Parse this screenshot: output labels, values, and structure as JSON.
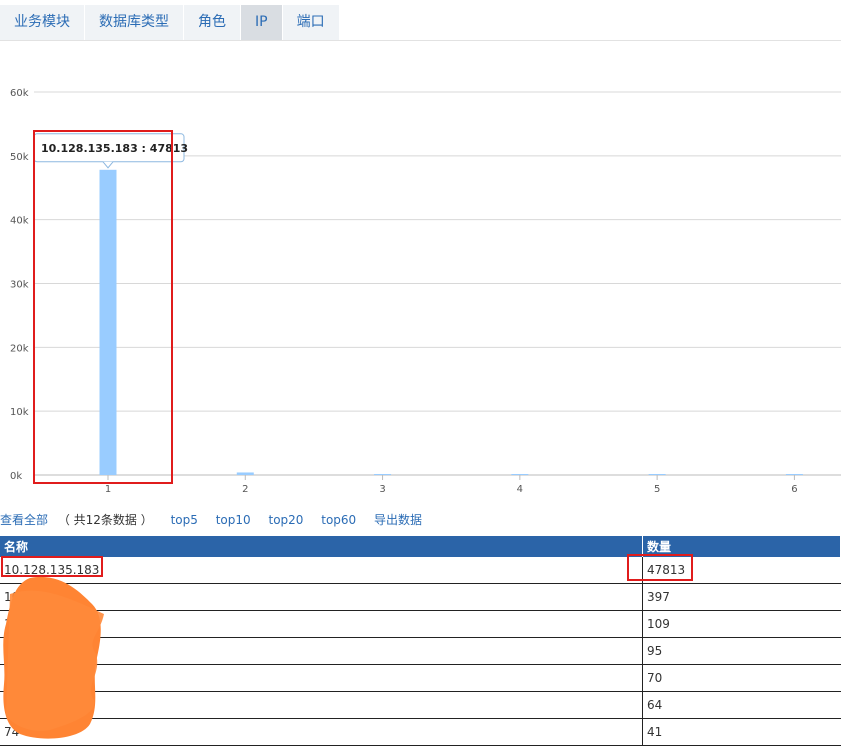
{
  "tabs": [
    {
      "label": "业务模块",
      "active": false
    },
    {
      "label": "数据库类型",
      "active": false
    },
    {
      "label": "角色",
      "active": false
    },
    {
      "label": "IP",
      "active": true
    },
    {
      "label": "端口",
      "active": false
    }
  ],
  "chart_data": {
    "type": "bar",
    "categories": [
      "1",
      "2",
      "3",
      "4",
      "5",
      "6"
    ],
    "values": [
      47813,
      397,
      109,
      95,
      70,
      64
    ],
    "ylim": [
      0,
      60000
    ],
    "yticks": [
      "0k",
      "10k",
      "20k",
      "30k",
      "40k",
      "50k",
      "60k"
    ],
    "bar_color": "#99ccff",
    "grid": true,
    "tooltip": {
      "name": "10.128.135.183",
      "value": "47813"
    }
  },
  "links": {
    "view_all": "查看全部",
    "count_text": "（ 共12条数据 ）",
    "top5": "top5",
    "top10": "top10",
    "top20": "top20",
    "top60": "top60",
    "export": "导出数据"
  },
  "table": {
    "headers": [
      "名称",
      "数量"
    ],
    "rows": [
      {
        "name": "10.128.135.183",
        "count": "47813"
      },
      {
        "name": "10.   .   .29",
        "count": "397"
      },
      {
        "name": "1",
        "count": "109"
      },
      {
        "name": "1",
        "count": "95"
      },
      {
        "name": "10",
        "count": "70"
      },
      {
        "name": "2",
        "count": "64"
      },
      {
        "name": "74",
        "count": "41"
      }
    ]
  },
  "colors": {
    "accent": "#2b64a8",
    "highlight": "#e01c1c",
    "redaction": "#ff8433"
  }
}
